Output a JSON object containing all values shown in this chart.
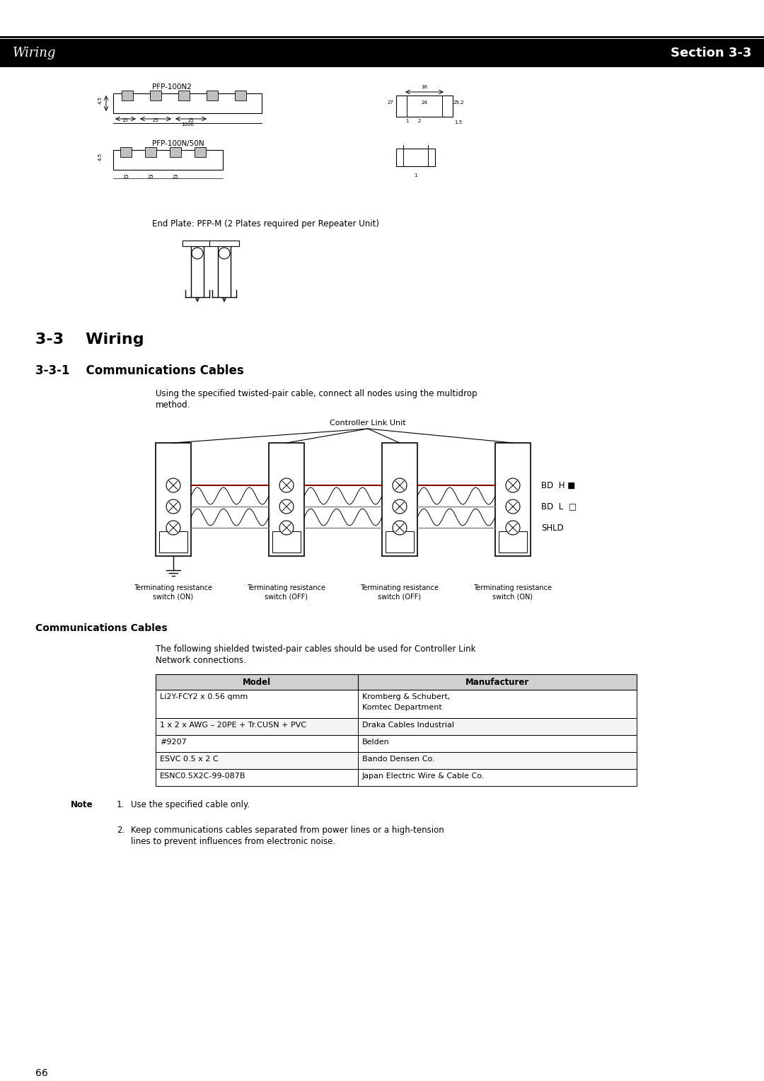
{
  "header_left": "Wiring",
  "header_right": "Section 3-3",
  "header_bg": "#000000",
  "header_text_color": "#ffffff",
  "header_left_color": "#000000",
  "page_bg": "#ffffff",
  "page_number": "66",
  "pfp100n2_label": "PFP-100N2",
  "pfp100n50n_label": "PFP-100N/50N",
  "end_plate_label": "End Plate: PFP-M (2 Plates required per Repeater Unit)",
  "section_33_title": "3-3    Wiring",
  "section_331_title": "3-3-1    Communications Cables",
  "intro_text": "Using the specified twisted-pair cable, connect all nodes using the multidrop\nmethod.",
  "controller_link_label": "Controller Link Unit",
  "terminating_labels": [
    "Terminating resistance\nswitch (ON)",
    "Terminating resistance\nswitch (OFF)",
    "Terminating resistance\nswitch (OFF)",
    "Terminating resistance\nswitch (ON)"
  ],
  "bd_h_label": "BD  H ■",
  "bd_l_label": "BD  L  □",
  "shld_label": "SHLD",
  "comm_cables_title": "Communications Cables",
  "comm_cables_intro": "The following shielded twisted-pair cables should be used for Controller Link\nNetwork connections.",
  "table_header": [
    "Model",
    "Manufacturer"
  ],
  "table_rows": [
    [
      "Li2Y-FCY2 x 0.56 qmm",
      "Kromberg & Schubert,\nKomtec Department"
    ],
    [
      "1 x 2 x AWG – 20PE + Tr.CUSN + PVC",
      "Draka Cables Industrial"
    ],
    [
      "#9207",
      "Belden"
    ],
    [
      "ESVC 0.5 x 2 C",
      "Bando Densen Co."
    ],
    [
      "ESNC0.5X2C-99-087B",
      "Japan Electric Wire & Cable Co."
    ]
  ],
  "note_label": "Note",
  "note_items": [
    "Use the specified cable only.",
    "Keep communications cables separated from power lines or a high-tension\nlines to prevent influences from electronic noise."
  ],
  "text_color": "#000000",
  "line_color": "#000000",
  "table_header_bg": "#d0d0d0",
  "red_line_color": "#8b0000"
}
